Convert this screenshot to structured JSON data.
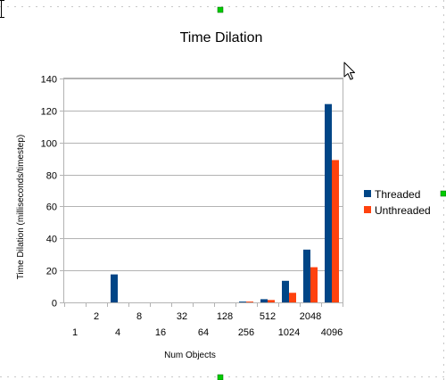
{
  "chart_data": {
    "type": "bar",
    "title": "Time Dilation",
    "xlabel": "Num Objects",
    "ylabel": "Time Dilation (milliseconds/timestep)",
    "categories": [
      "1",
      "2",
      "4",
      "8",
      "16",
      "32",
      "64",
      "128",
      "256",
      "512",
      "1024",
      "2048",
      "4096"
    ],
    "series": [
      {
        "name": "Threaded",
        "color": "#004586",
        "values": [
          0,
          0,
          17.5,
          0,
          0,
          0,
          0,
          0,
          0.5,
          2,
          13.5,
          33,
          124
        ]
      },
      {
        "name": "Unthreaded",
        "color": "#ff420e",
        "values": [
          0,
          0,
          0,
          0,
          0,
          0,
          0,
          0,
          0.5,
          1.5,
          6,
          22,
          89
        ]
      }
    ],
    "ylim": [
      0,
      140
    ],
    "yticks": [
      0,
      20,
      40,
      60,
      80,
      100,
      120,
      140
    ],
    "grid": true,
    "legend": "right"
  },
  "handles": {
    "color": "#00cc00",
    "icon": "selection-handle-icon"
  },
  "cursor": {
    "icon": "mouse-pointer-icon"
  }
}
